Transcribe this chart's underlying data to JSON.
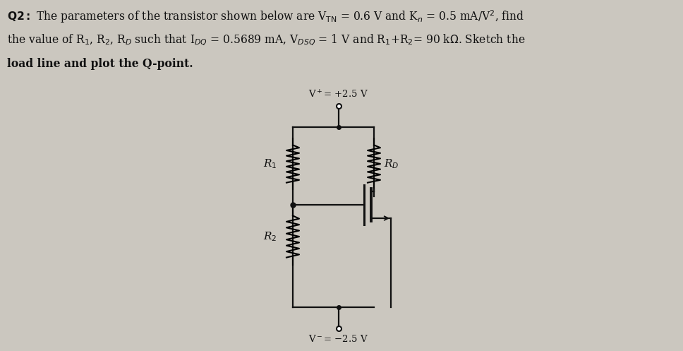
{
  "bg_color": "#cbc7bf",
  "wire_color": "#111111",
  "text_color": "#111111",
  "fig_width": 9.68,
  "fig_height": 4.97,
  "dpi": 100,
  "vplus_label": "V+=+2.5 V",
  "vminus_label": "V-=-2.5 V",
  "R1_label": "R1",
  "R2_label": "R2",
  "RD_label": "RD"
}
